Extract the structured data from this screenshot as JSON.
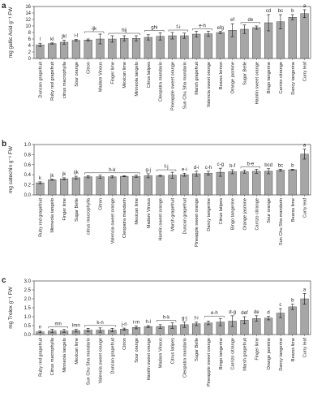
{
  "chart_data": [
    {
      "type": "bar",
      "panel_label": "a",
      "y_label": "mg gallic Acid g⁻¹ FW",
      "color": "#a6a6a6",
      "categories": [
        "Duncan grapefruit",
        "Ruby red grapefruit",
        "citrus macrophylla",
        "Sour orange",
        "Citron",
        "Madam Vinous",
        "Finger lime",
        "Mexican lime",
        "Minneola tangelo",
        "Citrus latipes",
        "Cleopatra mandarin",
        "Pineapple sweet orange",
        "Sun Chu Sha mandarin",
        "Marsh grapefruit",
        "Valencia sweet orange",
        "Bearss lemon",
        "Orange jasmine",
        "Sugar Belle",
        "Hamlin sweet orange",
        "Bingo tangerine",
        "Carrizo citrange",
        "Dancy tangerine",
        "Curry leaf"
      ],
      "values": [
        4.2,
        4.6,
        5.0,
        5.6,
        5.7,
        6.0,
        6.0,
        6.2,
        6.2,
        6.5,
        6.8,
        7.0,
        7.0,
        7.5,
        7.6,
        8.0,
        8.7,
        9.0,
        9.5,
        11.0,
        11.3,
        12.7,
        13.8
      ],
      "errors": [
        0.5,
        0.2,
        0.6,
        0.3,
        0.3,
        1.5,
        1.0,
        0.8,
        0.8,
        0.8,
        1.1,
        1.0,
        0.8,
        0.9,
        0.8,
        0.3,
        2.0,
        1.3,
        0.5,
        2.5,
        2.2,
        0.8,
        1.2
      ],
      "letters": [
        {
          "text": "l",
          "span": [
            0,
            0
          ]
        },
        {
          "text": "kl",
          "span": [
            1,
            1
          ]
        },
        {
          "text": "jkl",
          "span": [
            2,
            2
          ]
        },
        {
          "text": "i-l",
          "span": [
            3,
            3
          ]
        },
        {
          "text": "ijk",
          "span": [
            4,
            5
          ]
        },
        {
          "text": "hij",
          "span": [
            6,
            8
          ]
        },
        {
          "text": "ghi",
          "span": [
            9,
            10
          ]
        },
        {
          "text": "f-i",
          "span": [
            11,
            12
          ]
        },
        {
          "text": "e-h",
          "span": [
            13,
            14
          ]
        },
        {
          "text": "efg",
          "span": [
            15,
            15
          ]
        },
        {
          "text": "ef",
          "span": [
            16,
            16
          ]
        },
        {
          "text": "de",
          "span": [
            17,
            18
          ]
        },
        {
          "text": "cd",
          "span": [
            19,
            19
          ]
        },
        {
          "text": "bc",
          "span": [
            20,
            20
          ]
        },
        {
          "text": "b",
          "span": [
            21,
            21
          ]
        },
        {
          "text": "a",
          "span": [
            22,
            22
          ]
        }
      ],
      "ylim": [
        0,
        16
      ],
      "yticks": [
        0,
        2,
        4,
        6,
        8,
        10,
        12,
        14,
        16
      ]
    },
    {
      "type": "bar",
      "panel_label": "b",
      "y_label": "mg catechin g⁻¹ FW",
      "color": "#a6a6a6",
      "categories": [
        "Ruby red grapefruit",
        "Minneola tangelo",
        "Finger lime",
        "Sugar Belle",
        "citrus macrophylla",
        "Citron",
        "Valencia sweet orange",
        "Cleopatra mandarin",
        "Mexican lime",
        "Madam Vinous",
        "Hamlin sweet orange",
        "Marsh grapefruit",
        "Duncan grapefruit",
        "Pineapple sweet orange",
        "Dancy tangerine",
        "Citrus latipes",
        "Bingo tangerine",
        "Orange jasmine",
        "Carrizo citrange",
        "Sour orange",
        "Sun Chu Sha mandarin",
        "Bearss lime",
        "Curry leaf"
      ],
      "values": [
        0.24,
        0.3,
        0.32,
        0.34,
        0.36,
        0.36,
        0.36,
        0.37,
        0.37,
        0.38,
        0.38,
        0.39,
        0.4,
        0.42,
        0.43,
        0.45,
        0.46,
        0.46,
        0.47,
        0.47,
        0.49,
        0.5,
        0.81
      ],
      "errors": [
        0.02,
        0.01,
        0.02,
        0.03,
        0.02,
        0.03,
        0.02,
        0.01,
        0.02,
        0.04,
        0.01,
        0.06,
        0.03,
        0.05,
        0.04,
        0.08,
        0.04,
        0.03,
        0.04,
        0.05,
        0.02,
        0.01,
        0.1
      ],
      "letters": [
        {
          "text": "k",
          "span": [
            0,
            0
          ]
        },
        {
          "text": "jk",
          "span": [
            1,
            1
          ]
        },
        {
          "text": "jk",
          "span": [
            2,
            2
          ]
        },
        {
          "text": "ijk",
          "span": [
            3,
            3
          ]
        },
        {
          "text": "h-k",
          "span": [
            4,
            8
          ]
        },
        {
          "text": "g-j",
          "span": [
            9,
            9
          ]
        },
        {
          "text": "f-j",
          "span": [
            10,
            11
          ]
        },
        {
          "text": "e-i",
          "span": [
            12,
            12
          ]
        },
        {
          "text": "d-i",
          "span": [
            13,
            13
          ]
        },
        {
          "text": "c-h",
          "span": [
            14,
            14
          ]
        },
        {
          "text": "c-g",
          "span": [
            15,
            15
          ]
        },
        {
          "text": "b-f",
          "span": [
            16,
            16
          ]
        },
        {
          "text": "b-e",
          "span": [
            17,
            18
          ]
        },
        {
          "text": "bcd",
          "span": [
            19,
            19
          ]
        },
        {
          "text": "bc",
          "span": [
            20,
            20
          ]
        },
        {
          "text": "b",
          "span": [
            21,
            21
          ]
        },
        {
          "text": "a",
          "span": [
            22,
            22
          ]
        }
      ],
      "ylim": [
        0,
        1
      ],
      "yticks": [
        {
          "value": 0,
          "label": "0.0"
        },
        0.2,
        0.4,
        0.6,
        0.8,
        {
          "value": 1,
          "label": "1.0"
        }
      ]
    },
    {
      "type": "bar",
      "panel_label": "c",
      "y_label": "mg Trolox g⁻¹ FW",
      "color": "#a6a6a6",
      "categories": [
        "Ruby red grapefruit",
        "Citrus macrophylla",
        "Minneola tangelo",
        "Mexican lime",
        "Sun Chu Sha mandarin",
        "Valencia sweet orange",
        "Duncan grapefruit",
        "Citron",
        "Sour orange",
        "Hamlin sweet orange",
        "Madam Vinous",
        "Citrus latipes",
        "Cleopatra mandarin",
        "Sugar Belle",
        "Pineapple sweet orange",
        "Bingo tangerine",
        "Carrizo citrange",
        "Marsh grapefruit",
        "Finger lime",
        "Orange jasmine",
        "Dancy tangerine",
        "Bearss lime",
        "Curry leaf"
      ],
      "values": [
        0.15,
        0.2,
        0.2,
        0.22,
        0.25,
        0.25,
        0.25,
        0.3,
        0.4,
        0.45,
        0.45,
        0.5,
        0.55,
        0.6,
        0.65,
        0.7,
        0.75,
        0.8,
        0.9,
        0.92,
        1.2,
        1.55,
        2.0
      ],
      "errors": [
        0.05,
        0.1,
        0.08,
        0.08,
        0.1,
        0.12,
        0.1,
        0.06,
        0.08,
        0.05,
        0.1,
        0.15,
        0.15,
        0.1,
        0.1,
        0.2,
        0.3,
        0.2,
        0.15,
        0.1,
        0.25,
        0.15,
        0.3
      ],
      "letters": [
        {
          "text": "n",
          "span": [
            0,
            0
          ]
        },
        {
          "text": "mn",
          "span": [
            1,
            2
          ]
        },
        {
          "text": "lmn",
          "span": [
            3,
            3
          ]
        },
        {
          "text": "k-n",
          "span": [
            4,
            6
          ]
        },
        {
          "text": "j-n",
          "span": [
            7,
            7
          ]
        },
        {
          "text": "i-m",
          "span": [
            8,
            8
          ]
        },
        {
          "text": "h-l",
          "span": [
            9,
            9
          ]
        },
        {
          "text": "h-k",
          "span": [
            10,
            11
          ]
        },
        {
          "text": "g-j",
          "span": [
            12,
            12
          ]
        },
        {
          "text": "f-i",
          "span": [
            13,
            13
          ]
        },
        {
          "text": "e-h",
          "span": [
            14,
            15
          ]
        },
        {
          "text": "d-g",
          "span": [
            16,
            16
          ]
        },
        {
          "text": "def",
          "span": [
            17,
            17
          ]
        },
        {
          "text": "de",
          "span": [
            18,
            18
          ]
        },
        {
          "text": "d",
          "span": [
            19,
            19
          ]
        },
        {
          "text": "c",
          "span": [
            20,
            20
          ]
        },
        {
          "text": "b",
          "span": [
            21,
            21
          ]
        },
        {
          "text": "a",
          "span": [
            22,
            22
          ]
        }
      ],
      "ylim": [
        0,
        3
      ],
      "yticks": [
        {
          "value": 0,
          "label": "0.0"
        },
        0.5,
        {
          "value": 1,
          "label": "1.0"
        },
        1.5,
        {
          "value": 2,
          "label": "2.0"
        },
        2.5,
        {
          "value": 3,
          "label": "3.0"
        }
      ]
    }
  ]
}
